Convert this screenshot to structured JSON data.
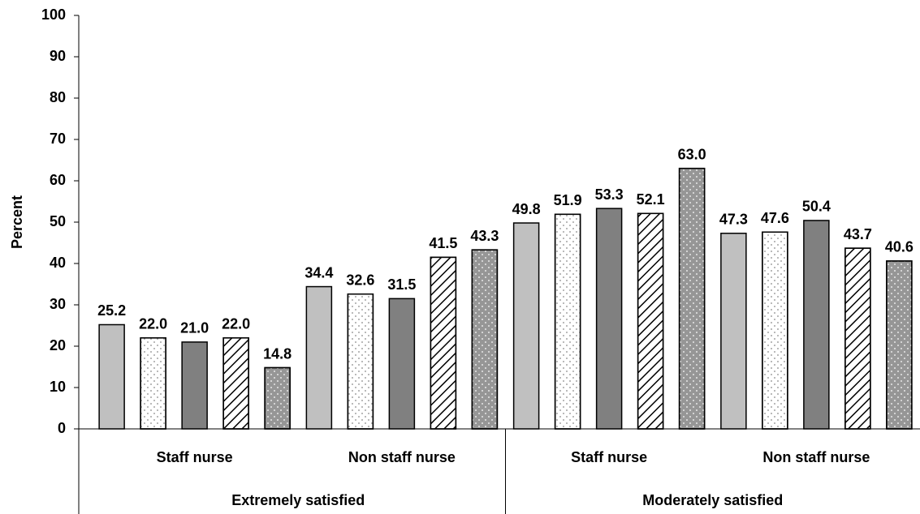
{
  "chart_data": {
    "type": "bar",
    "y_label": "Percent",
    "groups": [
      {
        "label": "Extremely satisfied",
        "categories": [
          "Staff nurse",
          "Non staff nurse"
        ]
      },
      {
        "label": "Moderately satisfied",
        "categories": [
          "Staff nurse",
          "Non staff nurse"
        ]
      }
    ],
    "series": [
      {
        "color": "#c0c0c0",
        "pattern": "solid",
        "values": [
          25.2,
          34.4,
          49.8,
          47.3
        ],
        "value_labels": [
          "25.2",
          "34.4",
          "49.8",
          "47.3"
        ]
      },
      {
        "color": "#ffffff",
        "pattern": "dots",
        "values": [
          22.0,
          32.6,
          51.9,
          47.6
        ],
        "value_labels": [
          "22.0",
          "32.6",
          "51.9",
          "47.6"
        ]
      },
      {
        "color": "#808080",
        "pattern": "solid",
        "values": [
          21.0,
          31.5,
          53.3,
          50.4
        ],
        "value_labels": [
          "21.0",
          "31.5",
          "53.3",
          "50.4"
        ]
      },
      {
        "color": "#ffffff",
        "pattern": "hatch",
        "values": [
          22.0,
          41.5,
          52.1,
          43.7
        ],
        "value_labels": [
          "22.0",
          "41.5",
          "52.1",
          "43.7"
        ]
      },
      {
        "color": "#969696",
        "pattern": "dots",
        "values": [
          14.8,
          43.3,
          63.0,
          40.6
        ],
        "value_labels": [
          "14.8",
          "43.3",
          "63.0",
          "40.6"
        ]
      }
    ],
    "ylim": [
      0,
      100
    ],
    "yticks": [
      0,
      10,
      20,
      30,
      40,
      50,
      60,
      70,
      80,
      90,
      100
    ]
  }
}
